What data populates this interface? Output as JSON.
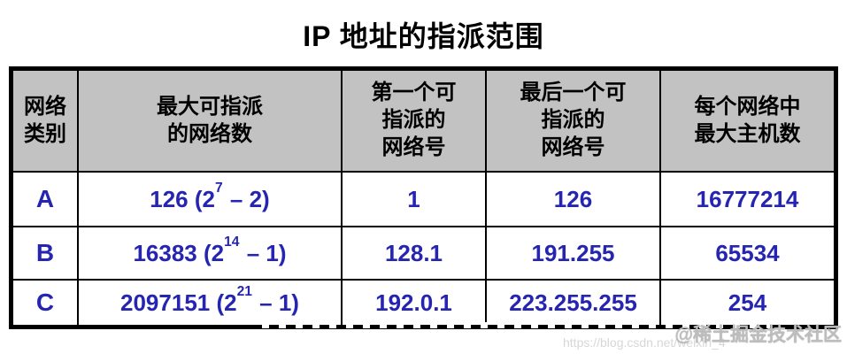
{
  "title": "IP 地址的指派范围",
  "colors": {
    "header_bg": "#c2c2c2",
    "value_text": "#2525b2",
    "border": "#000000",
    "watermark_gray": "#bdbdbd"
  },
  "table": {
    "headers": [
      {
        "lines": [
          "网络",
          "类别"
        ]
      },
      {
        "lines": [
          "最大可指派",
          "的网络数"
        ]
      },
      {
        "lines": [
          "第一个可",
          "指派的",
          "网络号"
        ]
      },
      {
        "lines": [
          "最后一个可",
          "指派的",
          "网络号"
        ]
      },
      {
        "lines": [
          "每个网络中",
          "最大主机数"
        ]
      }
    ],
    "rows": [
      {
        "cls": "A",
        "max_networks": {
          "base": "126 (2",
          "exp": "7",
          "tail": " – 2)"
        },
        "first_net": "1",
        "last_net": "126",
        "max_hosts": "16777214"
      },
      {
        "cls": "B",
        "max_networks": {
          "base": "16383 (2",
          "exp": "14",
          "tail": " – 1)"
        },
        "first_net": "128.1",
        "last_net": "191.255",
        "max_hosts": "65534"
      },
      {
        "cls": "C",
        "max_networks": {
          "base": "2097151 (2",
          "exp": "21",
          "tail": " – 1)"
        },
        "first_net": "192.0.1",
        "last_net": "223.255.255",
        "max_hosts": "254"
      }
    ]
  },
  "watermark": {
    "url": "https://blog.csdn.net/weixin_4",
    "community": "@稀土掘金技术社区"
  },
  "chart_data": {
    "type": "table",
    "title": "IP 地址的指派范围",
    "columns": [
      "网络类别",
      "最大可指派的网络数",
      "第一个可指派的网络号",
      "最后一个可指派的网络号",
      "每个网络中最大主机数"
    ],
    "rows": [
      [
        "A",
        "126 (2^7 – 2)",
        "1",
        "126",
        "16777214"
      ],
      [
        "B",
        "16383 (2^14 – 1)",
        "128.1",
        "191.255",
        "65534"
      ],
      [
        "C",
        "2097151 (2^21 – 1)",
        "192.0.1",
        "223.255.255",
        "254"
      ]
    ]
  }
}
